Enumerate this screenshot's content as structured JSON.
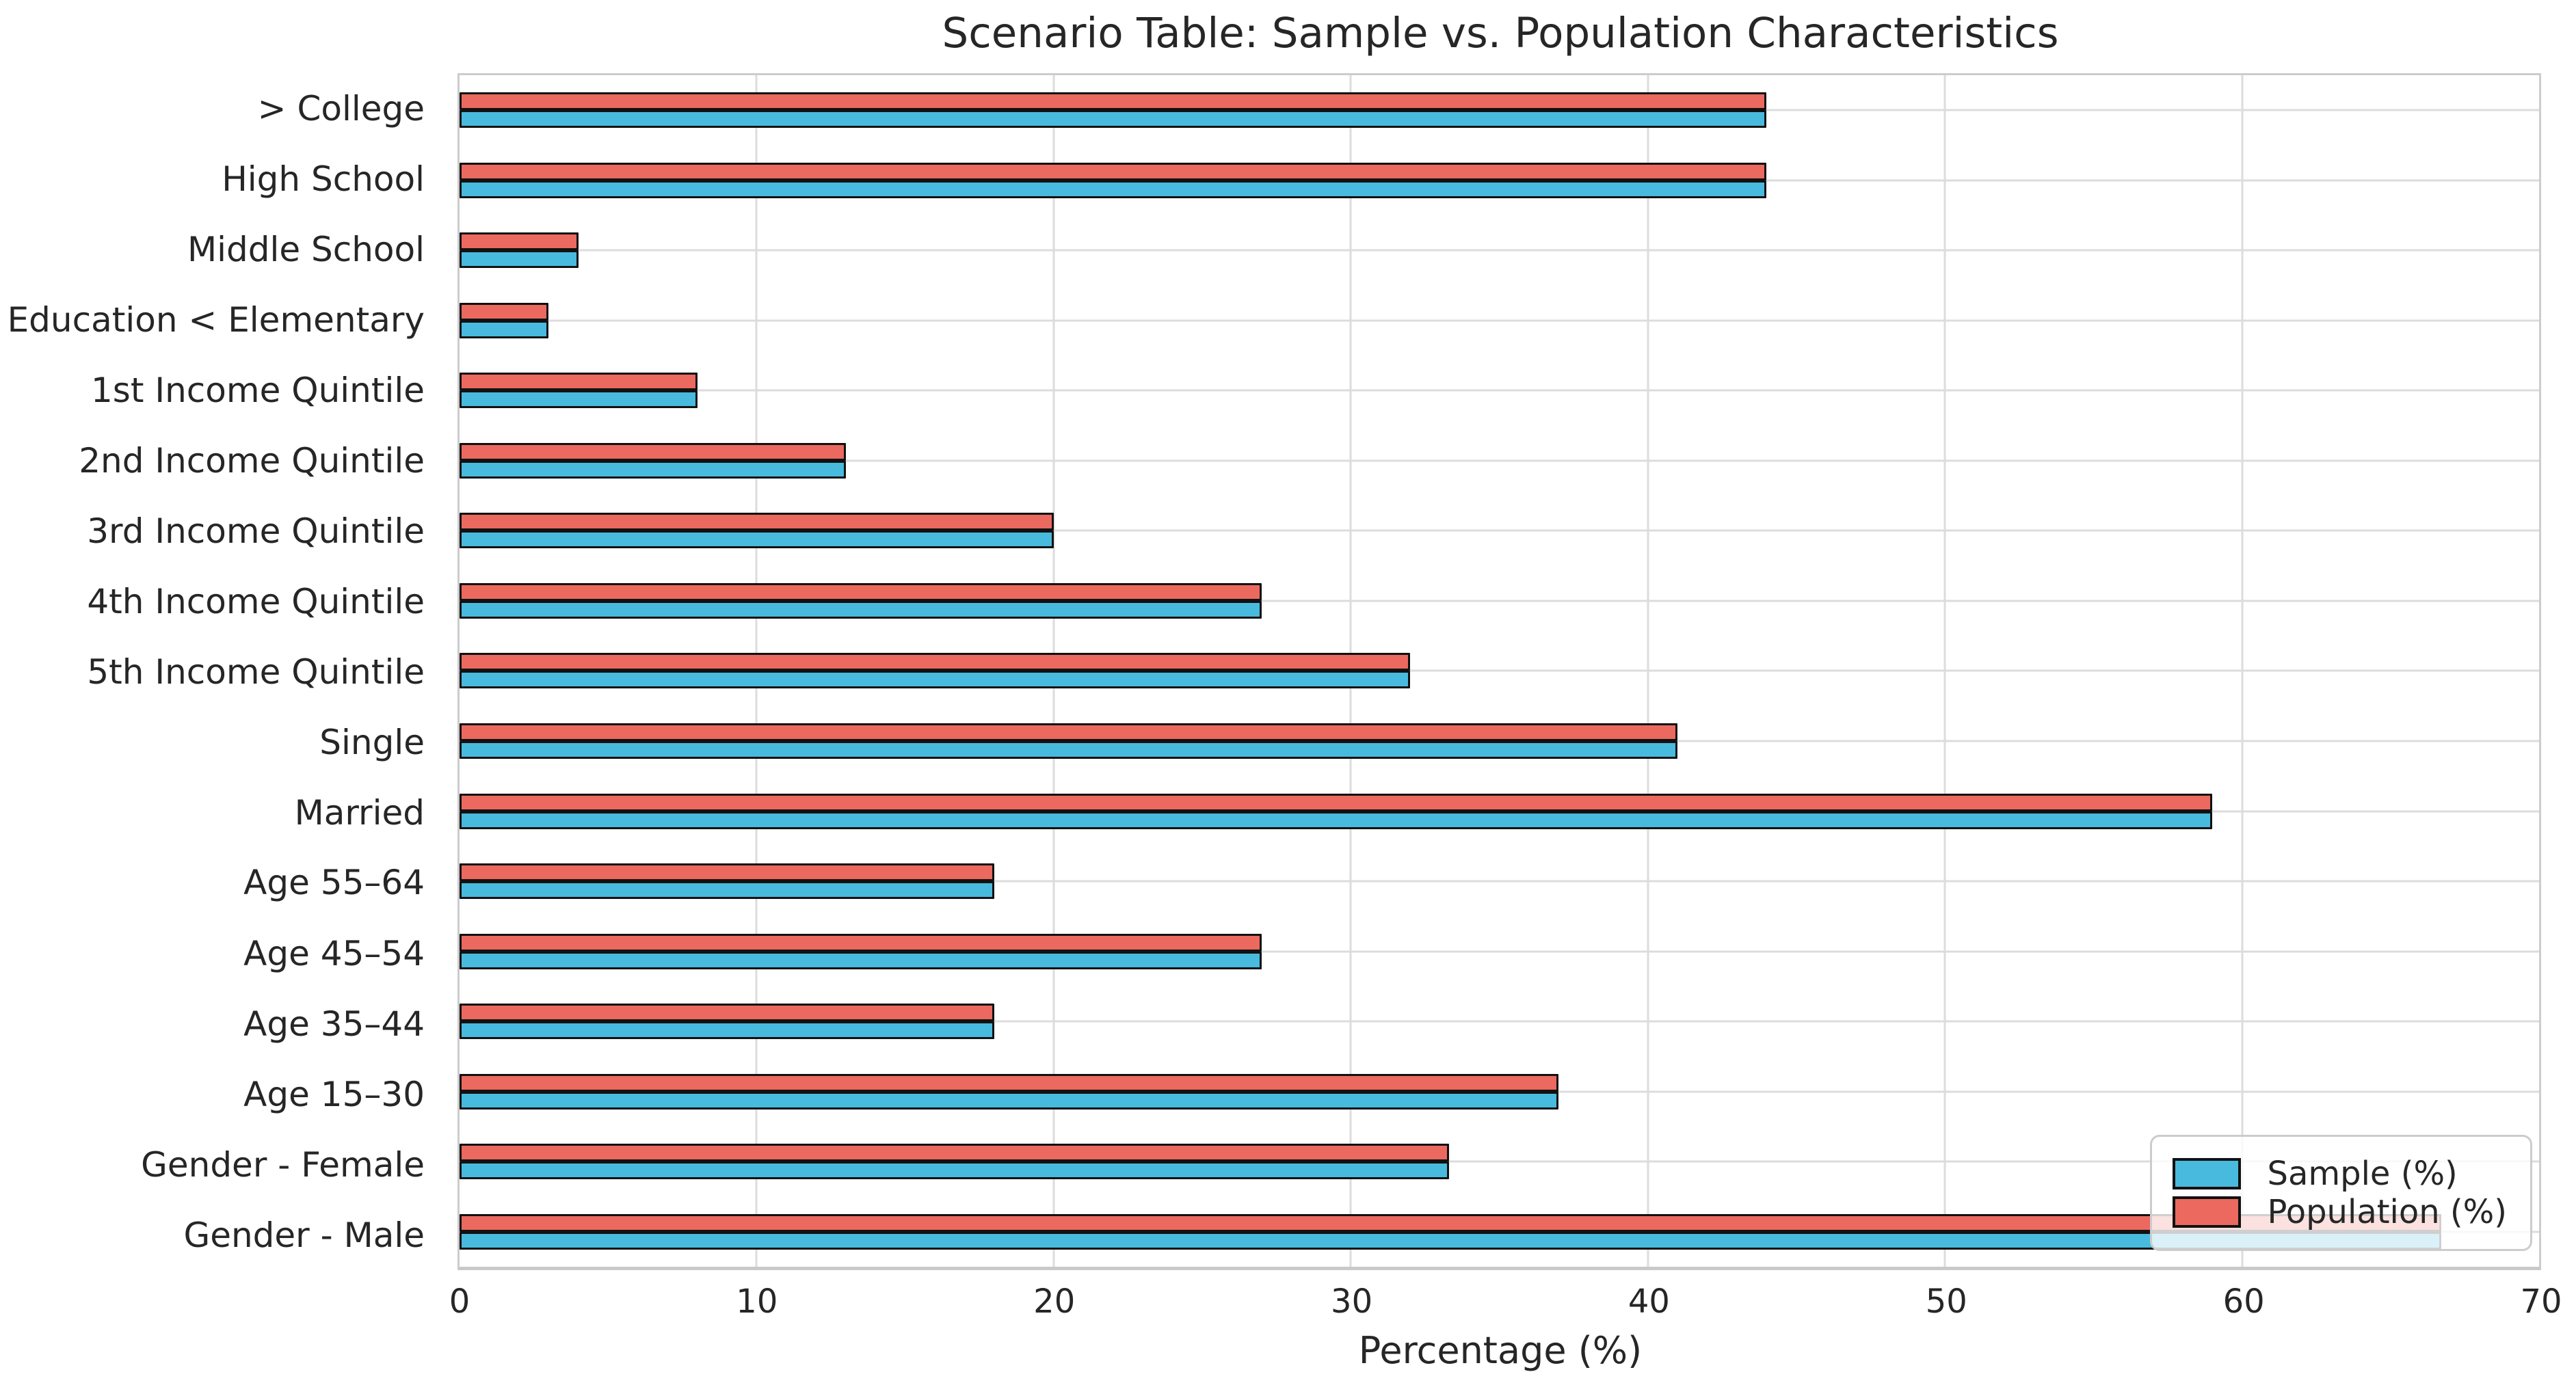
{
  "title": "Scenario Table: Sample vs. Population Characteristics",
  "x_axis": {
    "label": "Percentage (%)",
    "min": 0,
    "max": 70,
    "tick_labels": [
      "0",
      "10",
      "20",
      "30",
      "40",
      "50",
      "60",
      "70"
    ]
  },
  "colors": {
    "sample_blue": "#48BADE",
    "population_red": "#EB695F",
    "bar_edge": "#111111",
    "gridline": "#dcdcdc",
    "spine": "#cccccc"
  },
  "chart_data": {
    "type": "bar",
    "orientation": "horizontal",
    "title": "Scenario Table: Sample vs. Population Characteristics",
    "xlabel": "Percentage (%)",
    "xlim": [
      0,
      70
    ],
    "xticks": [
      0,
      10,
      20,
      30,
      40,
      50,
      60,
      70
    ],
    "grid": true,
    "legend_position": "lower right",
    "bar_edge_color": "#111111",
    "categories": [
      "> College",
      "High School",
      "Middle School",
      "Education < Elementary",
      "1st Income Quintile",
      "2nd Income Quintile",
      "3rd Income Quintile",
      "4th Income Quintile",
      "5th Income Quintile",
      "Single",
      "Married",
      "Age 55–64",
      "Age 45–54",
      "Age 35–44",
      "Age 15–30",
      "Gender - Female",
      "Gender - Male"
    ],
    "series": [
      {
        "name": "Sample (%)",
        "color": "#48BADE",
        "values": [
          44,
          44,
          4,
          3,
          8,
          13,
          20,
          27,
          32,
          41,
          59,
          18,
          27,
          18,
          37,
          33.3,
          66.7
        ]
      },
      {
        "name": "Population (%)",
        "color": "#EB695F",
        "values": [
          44,
          44,
          4,
          3,
          8,
          13,
          20,
          27,
          32,
          41,
          59,
          18,
          27,
          18,
          37,
          33.3,
          66.7
        ]
      }
    ]
  }
}
